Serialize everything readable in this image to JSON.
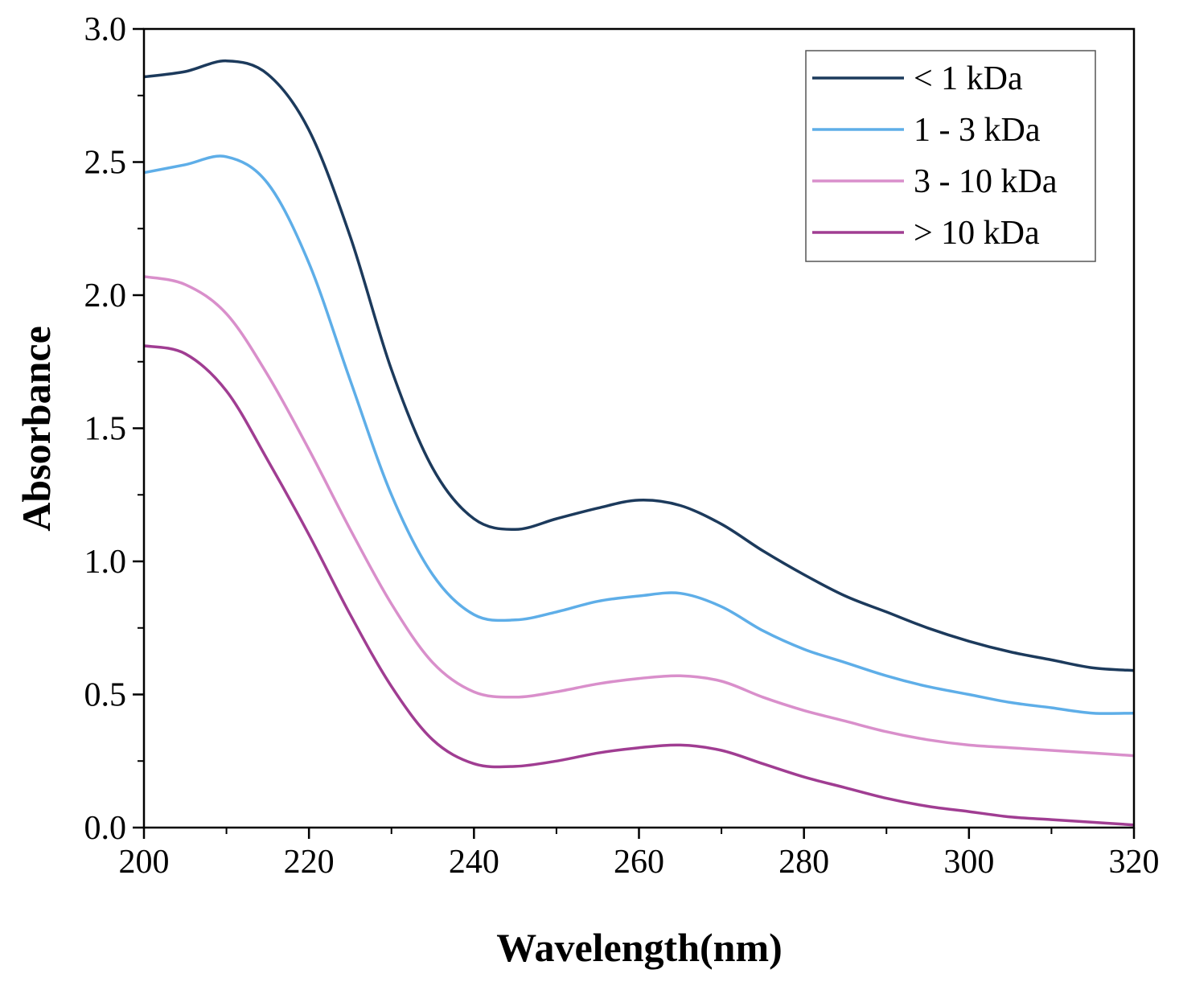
{
  "chart_data": {
    "type": "line",
    "title": "",
    "xlabel": "Wavelength(nm)",
    "ylabel": "Absorbance",
    "xlim": [
      200,
      320
    ],
    "ylim": [
      0.0,
      3.0
    ],
    "xticks": [
      200,
      220,
      240,
      260,
      280,
      300,
      320
    ],
    "xtick_labels": [
      "200",
      "220",
      "240",
      "260",
      "280",
      "300",
      "320"
    ],
    "yticks": [
      0.0,
      0.5,
      1.0,
      1.5,
      2.0,
      2.5,
      3.0
    ],
    "ytick_labels": [
      "0.0",
      "0.5",
      "1.0",
      "1.5",
      "2.0",
      "2.5",
      "3.0"
    ],
    "grid": false,
    "legend_position": "top-right",
    "x": [
      200,
      205,
      210,
      215,
      220,
      225,
      230,
      235,
      240,
      245,
      250,
      255,
      260,
      265,
      270,
      275,
      280,
      285,
      290,
      295,
      300,
      305,
      310,
      315,
      320
    ],
    "series": [
      {
        "name": "< 1 kDa",
        "color": "#1c3a5c",
        "values": [
          2.82,
          2.84,
          2.88,
          2.83,
          2.62,
          2.22,
          1.72,
          1.35,
          1.16,
          1.12,
          1.16,
          1.2,
          1.23,
          1.21,
          1.14,
          1.04,
          0.95,
          0.87,
          0.81,
          0.75,
          0.7,
          0.66,
          0.63,
          0.6,
          0.59
        ]
      },
      {
        "name": "1 - 3 kDa",
        "color": "#5eaee8",
        "values": [
          2.46,
          2.49,
          2.52,
          2.42,
          2.12,
          1.68,
          1.25,
          0.95,
          0.8,
          0.78,
          0.81,
          0.85,
          0.87,
          0.88,
          0.83,
          0.74,
          0.67,
          0.62,
          0.57,
          0.53,
          0.5,
          0.47,
          0.45,
          0.43,
          0.43
        ]
      },
      {
        "name": "3 - 10 kDa",
        "color": "#d98fcb",
        "values": [
          2.07,
          2.04,
          1.93,
          1.7,
          1.42,
          1.12,
          0.84,
          0.62,
          0.51,
          0.49,
          0.51,
          0.54,
          0.56,
          0.57,
          0.55,
          0.49,
          0.44,
          0.4,
          0.36,
          0.33,
          0.31,
          0.3,
          0.29,
          0.28,
          0.27
        ]
      },
      {
        "name": "> 10 kDa",
        "color": "#a03d92",
        "values": [
          1.81,
          1.78,
          1.64,
          1.38,
          1.1,
          0.8,
          0.53,
          0.33,
          0.24,
          0.23,
          0.25,
          0.28,
          0.3,
          0.31,
          0.29,
          0.24,
          0.19,
          0.15,
          0.11,
          0.08,
          0.06,
          0.04,
          0.03,
          0.02,
          0.01
        ]
      }
    ]
  }
}
